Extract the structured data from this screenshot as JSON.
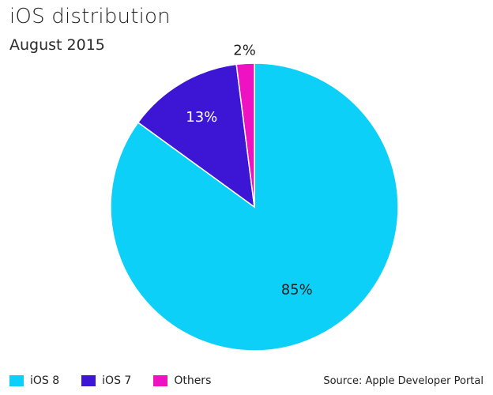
{
  "chart_data": {
    "type": "pie",
    "title": "iOS distribution",
    "subtitle": "August 2015",
    "categories": [
      "iOS 8",
      "iOS 7",
      "Others"
    ],
    "values": [
      85,
      13,
      2
    ],
    "labels": [
      "85%",
      "13%",
      "2%"
    ],
    "colors": [
      "#0cd0f7",
      "#3c16d4",
      "#ef12c2"
    ],
    "label_colors": [
      "#1e1e1e",
      "#ffffff",
      "#1e1e1e"
    ],
    "source": "Source: Apple Developer Portal",
    "legend_position": "bottom-left"
  }
}
